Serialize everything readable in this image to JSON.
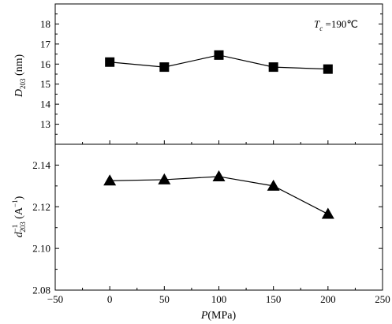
{
  "chart_data": [
    {
      "type": "line",
      "panel": "top",
      "marker": "square",
      "x": [
        0,
        50,
        100,
        150,
        200
      ],
      "values": [
        16.1,
        15.85,
        16.45,
        15.85,
        15.75
      ],
      "xlim": [
        -50,
        250
      ],
      "ylim": [
        12,
        19
      ],
      "yticks": [
        13,
        14,
        15,
        16,
        17,
        18
      ],
      "ylabel": {
        "main": "D",
        "sub": "203",
        "unit": " (nm)"
      },
      "annotation": {
        "main": "T",
        "sub": "c",
        "rest": " =190℃"
      },
      "grid": false
    },
    {
      "type": "line",
      "panel": "bottom",
      "marker": "triangle",
      "x": [
        0,
        50,
        100,
        150,
        200
      ],
      "values": [
        2.1325,
        2.133,
        2.1345,
        2.13,
        2.1165
      ],
      "xlim": [
        -50,
        250
      ],
      "ylim": [
        2.08,
        2.15
      ],
      "yticks": [
        2.08,
        2.1,
        2.12,
        2.14
      ],
      "ytick_labels": [
        "2.08",
        "2.10",
        "2.12",
        "2.14"
      ],
      "ylabel": {
        "main": "d",
        "sup": "−1",
        "sub": "203",
        "unit": " (A",
        "unit_sup": "−1",
        "unit_end": ")"
      },
      "grid": false
    }
  ],
  "x_axis": {
    "ticks": [
      -50,
      0,
      50,
      100,
      150,
      200,
      250
    ],
    "tick_labels": [
      "−50",
      "0",
      "50",
      "100",
      "150",
      "200",
      "250"
    ],
    "xlabel": {
      "main": "P",
      "unit": "(MPa)"
    }
  }
}
